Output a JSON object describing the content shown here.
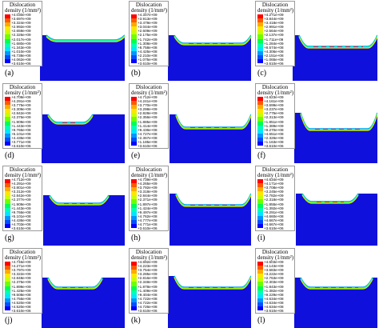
{
  "palette": [
    "#ff0000",
    "#ff5a00",
    "#ffaa00",
    "#ffe600",
    "#c8ff00",
    "#6eff00",
    "#00ff50",
    "#00ffb4",
    "#00e6ff",
    "#0096ff",
    "#0050ff",
    "#0000ff"
  ],
  "background_blue": "#1010dd",
  "panels": [
    {
      "label": "(a)",
      "title1": "Dislocation",
      "title2": "density (1/mm²)",
      "ticks": [
        "+4.030e+09",
        "+3.697e+09",
        "+3.324e+09",
        "+2.992e+09",
        "+2.659e+09",
        "+2.326e+09",
        "+2.017e+09",
        "+1.680e+09",
        "+1.343e+09",
        "+1.010e+09",
        "+6.738e+08",
        "+4.062e+08",
        "+3.610e+06"
      ]
    },
    {
      "label": "(b)",
      "title1": "Dislocation",
      "title2": "density (1/mm²)",
      "ticks": [
        "+4.347e+09",
        "+3.913e+09",
        "+3.478e+09",
        "+3.044e+09",
        "+2.609e+09",
        "+2.175e+09",
        "+1.742e+09",
        "+1.308e+09",
        "+8.758e+08",
        "+4.425e+08",
        "+2.210e+08",
        "+1.075e+08",
        "+3.610e+06"
      ]
    },
    {
      "label": "(c)",
      "title1": "Dislocation",
      "title2": "density (1/mm²)",
      "ticks": [
        "+4.271e+09",
        "+3.844e+09",
        "+3.418e+09",
        "+2.991e+09",
        "+2.564e+09",
        "+2.137e+09",
        "+1.711e+09",
        "+1.284e+09",
        "+8.574e+08",
        "+4.306e+08",
        "+2.151e+08",
        "+1.065e+08",
        "+3.610e+06"
      ]
    },
    {
      "label": "(d)",
      "title1": "Dislocation",
      "title2": "density (1/mm²)",
      "ticks": [
        "+4.708e+09",
        "+4.291e+09",
        "+3.775e+09",
        "+3.309e+09",
        "+2.842e+09",
        "+2.376e+09",
        "+1.909e+09",
        "+1.443e+09",
        "+9.766e+08",
        "+5.101e+08",
        "+4.436e+08",
        "+3.771e+08",
        "+3.610e+06"
      ]
    },
    {
      "label": "(e)",
      "title1": "Dislocation",
      "title2": "density (1/mm²)",
      "ticks": [
        "+4.712e+09",
        "+4.241e+09",
        "+3.770e+09",
        "+3.298e+09",
        "+2.828e+09",
        "+2.356e+09",
        "+1.885e+09",
        "+1.414e+09",
        "+9.436e+08",
        "+4.727e+08",
        "+2.367e+08",
        "+1.185e+08",
        "+3.610e+06"
      ]
    },
    {
      "label": "(f)",
      "title1": "Dislocation",
      "title2": "density (1/mm²)",
      "ticks": [
        "+4.623e+09",
        "+4.161e+09",
        "+3.699e+09",
        "+3.237e+09",
        "+2.775e+09",
        "+2.313e+09",
        "+1.851e+09",
        "+1.389e+09",
        "+9.270e+08",
        "+4.651e+08",
        "+2.326e+08",
        "+1.163e+08",
        "+3.610e+06"
      ]
    },
    {
      "label": "(g)",
      "title1": "Dislocation",
      "title2": "density (1/mm²)",
      "ticks": [
        "+4.712e+09",
        "+4.291e+09",
        "+3.801e+09",
        "+3.312e+09",
        "+2.842e+09",
        "+2.377e+09",
        "+1.909e+09",
        "+1.443e+09",
        "+9.766e+08",
        "+5.101e+08",
        "+4.436e+08",
        "+4.703e+08",
        "+3.610e+06"
      ]
    },
    {
      "label": "(h)",
      "title1": "Dislocation",
      "title2": "density (1/mm²)",
      "ticks": [
        "+4.739e+09",
        "+4.265e+09",
        "+3.792e+09",
        "+3.318e+09",
        "+2.844e+09",
        "+2.371e+09",
        "+1.897e+09",
        "+1.424e+09",
        "+9.497e+08",
        "+4.762e+08",
        "+4.777e+08",
        "+4.771e+08",
        "+3.610e+06"
      ]
    },
    {
      "label": "(i)",
      "title1": "Dislocation",
      "title2": "density (1/mm²)",
      "ticks": [
        "+4.634e+09",
        "+4.171e+09",
        "+3.708e+09",
        "+3.245e+09",
        "+2.782e+09",
        "+2.318e+09",
        "+1.855e+09",
        "+1.392e+09",
        "+9.291e+08",
        "+4.660e+08",
        "+4.667e+08",
        "+4.667e+08",
        "+3.610e+06"
      ]
    },
    {
      "label": "(j)",
      "title1": "Dislocation",
      "title2": "density (1/mm²)",
      "ticks": [
        "+4.746e+09",
        "+4.271e+09",
        "+3.797e+09",
        "+3.322e+09",
        "+2.848e+09",
        "+2.375e+09",
        "+1.899e+09",
        "+1.425e+09",
        "+9.508e+08",
        "+4.756e+08",
        "+4.520e+08",
        "+4.520e+08",
        "+3.610e+06"
      ]
    },
    {
      "label": "(k)",
      "title1": "Dislocation",
      "title2": "density (1/mm²)",
      "ticks": [
        "+4.692e+09",
        "+4.223e+09",
        "+3.754e+09",
        "+3.285e+09",
        "+2.816e+09",
        "+2.348e+09",
        "+1.878e+09",
        "+1.409e+09",
        "+9.404e+08",
        "+4.722e+08",
        "+4.722e+08",
        "+4.726e+08",
        "+3.610e+06"
      ]
    },
    {
      "label": "(l)",
      "title1": "Dislocation",
      "title2": "density (1/mm²)",
      "ticks": [
        "+4.603e+09",
        "+4.143e+09",
        "+3.683e+09",
        "+3.222e+09",
        "+2.763e+09",
        "+2.303e+09",
        "+1.843e+09",
        "+1.382e+09",
        "+9.229e+08",
        "+4.634e+08",
        "+4.634e+08",
        "+4.634e+08",
        "+3.610e+06"
      ]
    }
  ]
}
